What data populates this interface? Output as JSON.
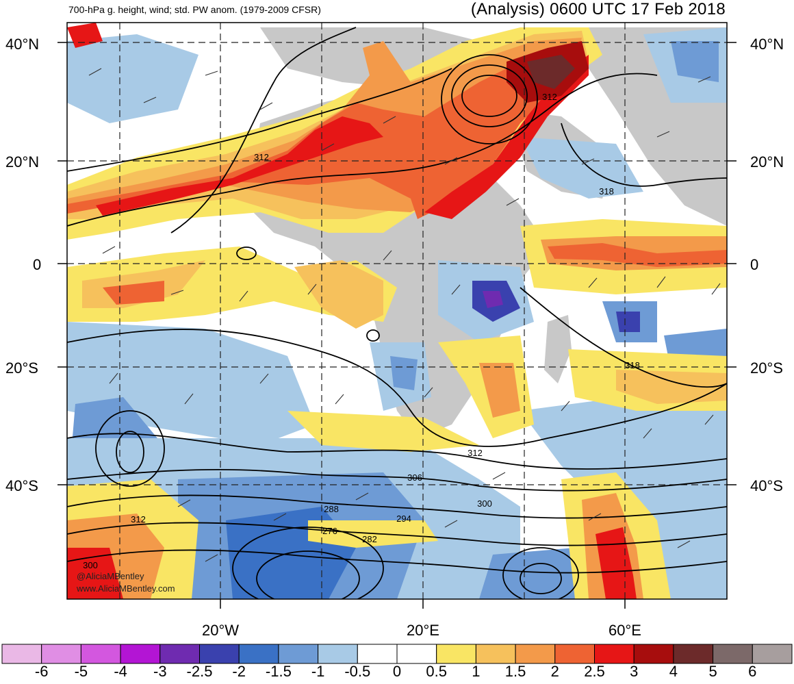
{
  "header": {
    "left_title": "700-hPa g. height, wind; std. PW anom. (1979-2009 CFSR)",
    "right_title": "(Analysis) 0600 UTC 17 Feb 2018"
  },
  "map": {
    "lat_labels": [
      "40°N",
      "20°N",
      "0",
      "20°S",
      "40°S"
    ],
    "lon_labels": [
      "20°W",
      "20°E",
      "60°E"
    ],
    "contour_labels": [
      "312",
      "312",
      "318",
      "318",
      "312",
      "306",
      "300",
      "288",
      "294",
      "276",
      "282",
      "312",
      "300"
    ],
    "credit_lines": [
      "@AliciaMBentley",
      "www.AliciaMBentley.com"
    ]
  },
  "colorbar": {
    "colors": [
      "#eab8e6",
      "#e08ee4",
      "#d357df",
      "#b315d4",
      "#6f2bb0",
      "#3a41ae",
      "#3a71c5",
      "#6e9bd5",
      "#a8cae6",
      "#ffffff",
      "#ffffff",
      "#f9e564",
      "#f6c15c",
      "#f39a4a",
      "#ee6333",
      "#e61616",
      "#a70d0d",
      "#6c2a2a",
      "#7c6969",
      "#a79e9e"
    ],
    "labels": [
      "-6",
      "-5",
      "-4",
      "-3",
      "-2.5",
      "-2",
      "-1.5",
      "-1",
      "-0.5",
      "0",
      "0.5",
      "1",
      "1.5",
      "2",
      "2.5",
      "3",
      "4",
      "5",
      "6"
    ]
  }
}
